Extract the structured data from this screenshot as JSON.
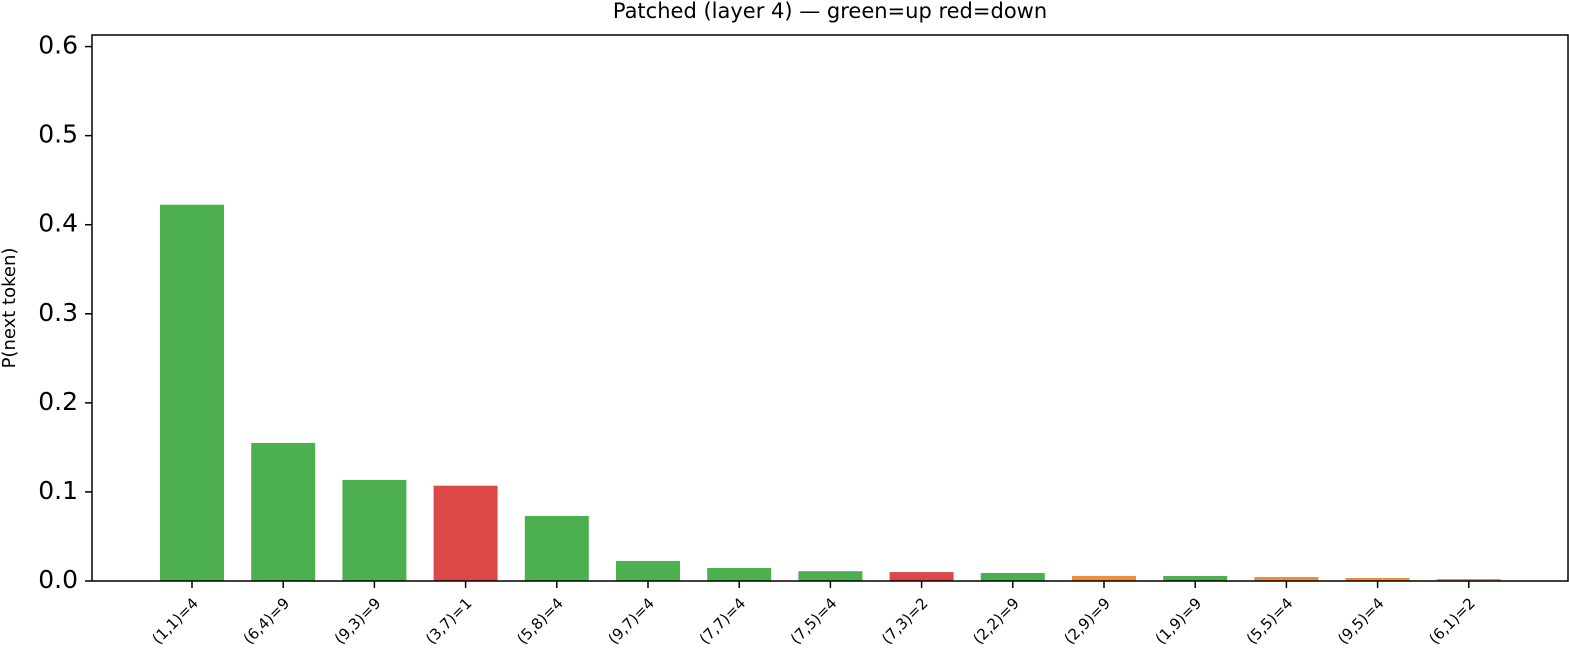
{
  "chart_data": {
    "type": "bar",
    "title": "Patched (layer 4)  — green=up  red=down",
    "ylabel": "P(next token)",
    "categories": [
      "(1,1)=4",
      "(6,4)=9",
      "(9,3)=9",
      "(3,7)=1",
      "(5,8)=4",
      "(9,7)=4",
      "(7,7)=4",
      "(7,5)=4",
      "(7,3)=2",
      "(2,2)=9",
      "(2,9)=9",
      "(1,9)=9",
      "(5,5)=4",
      "(9,5)=4",
      "(6,1)=2"
    ],
    "values": [
      0.4225,
      0.155,
      0.1135,
      0.107,
      0.073,
      0.0225,
      0.0146,
      0.011,
      0.01,
      0.009,
      0.0056,
      0.0056,
      0.0045,
      0.0034,
      0.0022
    ],
    "colors": [
      "#4caf50",
      "#4caf50",
      "#4caf50",
      "#dc4848",
      "#4caf50",
      "#4caf50",
      "#4caf50",
      "#4caf50",
      "#dc4848",
      "#4caf50",
      "#f28c38",
      "#4caf50",
      "#f28c38",
      "#f28c38",
      "#f28c38"
    ],
    "ylim": [
      0,
      0.613
    ],
    "yticks": [
      {
        "value": 0,
        "label": "0.0"
      },
      0.1,
      0.2,
      0.3,
      0.4,
      0.5,
      0.6
    ]
  }
}
